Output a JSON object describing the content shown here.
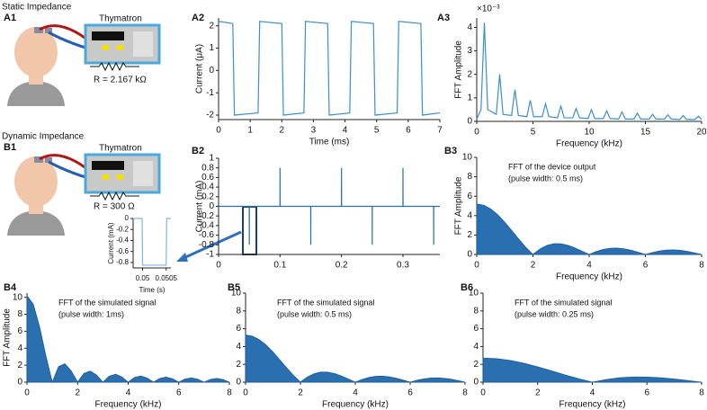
{
  "diagrams": [
    {
      "panel": "A1",
      "title": "Static Impedance",
      "device": "Thymatron",
      "resistance": "R = 2.167 kΩ"
    },
    {
      "panel": "B1",
      "title": "Dynamic Impedance",
      "device": "Thymatron",
      "resistance": "R = 300 Ω"
    }
  ],
  "chart_data": [
    {
      "panel": "A2",
      "type": "line",
      "xlabel": "Time (ms)",
      "ylabel": "Current (μA)",
      "color": "#3b8fd0",
      "x": [
        0,
        0.45,
        0.5,
        1.25,
        1.3,
        2.0,
        2.05,
        2.7,
        2.75,
        3.45,
        3.5,
        4.15,
        4.2,
        4.9,
        4.95,
        5.65,
        5.7,
        6.4,
        6.45,
        7
      ],
      "values": [
        2.2,
        2.1,
        -2.0,
        -1.9,
        2.2,
        2.1,
        -2.0,
        -1.9,
        2.2,
        2.1,
        -2.0,
        -1.9,
        2.2,
        2.1,
        -2.0,
        -1.9,
        2.2,
        2.1,
        -2.0,
        -1.9
      ],
      "xlim": [
        0,
        7
      ],
      "ylim": [
        -2.2,
        2.35
      ],
      "xticks": [
        0,
        1,
        2,
        3,
        4,
        5,
        6,
        7
      ],
      "yticks": [
        -2,
        -1,
        0,
        1,
        2
      ]
    },
    {
      "panel": "A3",
      "type": "line",
      "xlabel": "Frequency (kHz)",
      "ylabel": "FFT Amplitude",
      "y_multiplier": "×10⁻³",
      "color": "#3b8fd0",
      "x": [
        0,
        0.38,
        0.68,
        0.98,
        1.74,
        2.04,
        2.34,
        3.1,
        3.4,
        3.7,
        4.46,
        4.76,
        5.06,
        5.82,
        6.12,
        6.42,
        7.18,
        7.48,
        7.78,
        8.54,
        8.84,
        9.14,
        9.9,
        10.2,
        10.5,
        11.26,
        11.56,
        11.86,
        12.62,
        12.92,
        13.22,
        13.98,
        14.28,
        14.58,
        15.34,
        15.64,
        15.94,
        16.7,
        17.0,
        17.3,
        18.06,
        18.36,
        18.66,
        19.42,
        19.72,
        20
      ],
      "values": [
        0.1,
        0.5,
        4.2,
        0.5,
        0.3,
        2.0,
        0.3,
        0.25,
        1.35,
        0.25,
        0.2,
        0.9,
        0.2,
        0.2,
        0.75,
        0.2,
        0.15,
        0.65,
        0.15,
        0.15,
        0.55,
        0.15,
        0.12,
        0.5,
        0.12,
        0.12,
        0.45,
        0.12,
        0.1,
        0.4,
        0.1,
        0.1,
        0.35,
        0.1,
        0.1,
        0.3,
        0.1,
        0.1,
        0.28,
        0.1,
        0.08,
        0.25,
        0.08,
        0.08,
        0.22,
        0.08
      ],
      "xlim": [
        0,
        20
      ],
      "ylim": [
        0,
        4.4
      ],
      "xticks": [
        0,
        5,
        10,
        15,
        20
      ],
      "yticks": [
        0,
        1,
        2,
        3,
        4
      ]
    },
    {
      "panel": "B2",
      "type": "line",
      "ylabel": "Current (mA)",
      "color": "#2a6fb0",
      "x": [
        0,
        0.0499,
        0.05,
        0.0501,
        0.0999,
        0.1,
        0.1001,
        0.1499,
        0.15,
        0.1501,
        0.1999,
        0.2,
        0.2001,
        0.2499,
        0.25,
        0.2501,
        0.2999,
        0.3,
        0.3001,
        0.3499,
        0.35,
        0.3501,
        0.36
      ],
      "values": [
        0,
        0,
        -0.8,
        0,
        0,
        0.8,
        0,
        0,
        -0.8,
        0,
        0,
        0.8,
        0,
        0,
        -0.8,
        0,
        0,
        0.8,
        0,
        0,
        -0.8,
        0,
        0
      ],
      "xlim": [
        0,
        0.36
      ],
      "ylim": [
        -1,
        1
      ],
      "xticks": [
        0,
        0.1,
        0.2,
        0.3
      ],
      "yticks": [
        -1,
        -0.8,
        -0.6,
        -0.4,
        -0.2,
        0,
        0.2,
        0.4,
        0.6,
        0.8,
        1
      ]
    },
    {
      "type": "line",
      "xlabel": "Time (s)",
      "ylabel": "Current (mA)",
      "color": "#7fb6e0",
      "x": [
        0.0498,
        0.04999,
        0.05,
        0.0505,
        0.05051,
        0.0506
      ],
      "values": [
        0,
        0,
        -0.85,
        -0.85,
        0,
        0
      ],
      "xlim": [
        0.0498,
        0.0506
      ],
      "ylim": [
        -0.9,
        0
      ],
      "xticks": [
        0.05,
        0.0505
      ],
      "yticks": [
        -0.8,
        -0.6,
        -0.4,
        -0.2,
        0
      ]
    },
    {
      "panel": "B3",
      "type": "area",
      "xlabel": "Frequency (kHz)",
      "ylabel": "FFT Amplitude",
      "annotation": [
        "FFT of the device output",
        "(pulse width: 0.5 ms)"
      ],
      "color": "#2a6fb0",
      "x": [
        0,
        0.25,
        0.5,
        0.75,
        1,
        1.25,
        1.5,
        1.75,
        2,
        2.25,
        2.5,
        2.75,
        3,
        3.25,
        3.5,
        3.75,
        4,
        4.25,
        4.5,
        4.75,
        5,
        5.25,
        5.5,
        5.75,
        6,
        6.25,
        6.5,
        6.75,
        7,
        7.25,
        7.5,
        7.75,
        8
      ],
      "values": [
        5.2,
        5.07,
        4.68,
        4.08,
        3.31,
        2.44,
        1.56,
        0.72,
        0,
        0.56,
        0.94,
        1.11,
        1.1,
        0.94,
        0.66,
        0.34,
        0,
        0.3,
        0.52,
        0.64,
        0.66,
        0.58,
        0.43,
        0.22,
        0,
        0.2,
        0.36,
        0.45,
        0.47,
        0.42,
        0.31,
        0.16,
        0
      ],
      "xlim": [
        0,
        8
      ],
      "ylim": [
        0,
        10
      ],
      "xticks": [
        0,
        2,
        4,
        6,
        8
      ],
      "yticks": [
        0,
        2,
        4,
        6,
        8,
        10
      ]
    },
    {
      "panel": "B4",
      "type": "area",
      "xlabel": "Frequency (kHz)",
      "ylabel": "FFT Amplitude",
      "annotation": [
        "FFT of the simulated signal",
        "(pulse width: 1ms)"
      ],
      "color": "#2a6fb0",
      "x": [
        0,
        0.25,
        0.5,
        0.75,
        1,
        1.25,
        1.5,
        1.75,
        2,
        2.25,
        2.5,
        2.75,
        3,
        3.25,
        3.5,
        3.75,
        4,
        4.25,
        4.5,
        4.75,
        5,
        5.25,
        5.5,
        5.75,
        6,
        6.25,
        6.5,
        6.75,
        7,
        7.25,
        7.5,
        7.75,
        8
      ],
      "values": [
        10.2,
        9.18,
        6.5,
        3.06,
        0,
        1.84,
        2.16,
        1.32,
        0,
        1.02,
        1.3,
        0.84,
        0,
        0.71,
        0.93,
        0.61,
        0,
        0.54,
        0.72,
        0.48,
        0,
        0.44,
        0.59,
        0.4,
        0,
        0.37,
        0.5,
        0.34,
        0,
        0.32,
        0.43,
        0.3,
        0
      ],
      "xlim": [
        0,
        8
      ],
      "ylim": [
        0,
        10.5
      ],
      "xticks": [
        0,
        2,
        4,
        6,
        8
      ],
      "yticks": [
        0,
        2,
        4,
        6,
        8,
        10
      ]
    },
    {
      "panel": "B5",
      "type": "area",
      "xlabel": "Frequency (kHz)",
      "annotation": [
        "FFT of the simulated signal",
        "(pulse width: 0.5 ms)"
      ],
      "color": "#2a6fb0",
      "x": [
        0,
        0.25,
        0.5,
        0.75,
        1,
        1.25,
        1.5,
        1.75,
        2,
        2.25,
        2.5,
        2.75,
        3,
        3.25,
        3.5,
        3.75,
        4,
        4.25,
        4.5,
        4.75,
        5,
        5.25,
        5.5,
        5.75,
        6,
        6.25,
        6.5,
        6.75,
        7,
        7.25,
        7.5,
        7.75,
        8
      ],
      "values": [
        5.3,
        5.16,
        4.77,
        4.16,
        3.38,
        2.49,
        1.59,
        0.74,
        0,
        0.57,
        0.95,
        1.13,
        1.12,
        0.96,
        0.68,
        0.34,
        0,
        0.3,
        0.53,
        0.66,
        0.67,
        0.59,
        0.43,
        0.22,
        0,
        0.21,
        0.37,
        0.46,
        0.48,
        0.43,
        0.32,
        0.17,
        0
      ],
      "xlim": [
        0,
        8
      ],
      "ylim": [
        0,
        10
      ],
      "xticks": [
        0,
        2,
        4,
        6,
        8
      ],
      "yticks": [
        0,
        2,
        4,
        6,
        8,
        10
      ]
    },
    {
      "panel": "B6",
      "type": "area",
      "xlabel": "Frequency (kHz)",
      "annotation": [
        "FFT of the simulated signal",
        "(pulse width: 0.25 ms)"
      ],
      "color": "#2a6fb0",
      "x": [
        0,
        0.5,
        1,
        1.5,
        2,
        2.5,
        3,
        3.5,
        4,
        4.5,
        5,
        5.5,
        6,
        6.5,
        7,
        7.5,
        8
      ],
      "values": [
        2.7,
        2.63,
        2.43,
        2.12,
        1.72,
        1.27,
        0.81,
        0.38,
        0,
        0.29,
        0.49,
        0.58,
        0.57,
        0.49,
        0.35,
        0.18,
        0
      ],
      "xlim": [
        0,
        8
      ],
      "ylim": [
        0,
        10
      ],
      "xticks": [
        0,
        2,
        4,
        6,
        8
      ],
      "yticks": [
        0,
        2,
        4,
        6,
        8,
        10
      ]
    }
  ]
}
